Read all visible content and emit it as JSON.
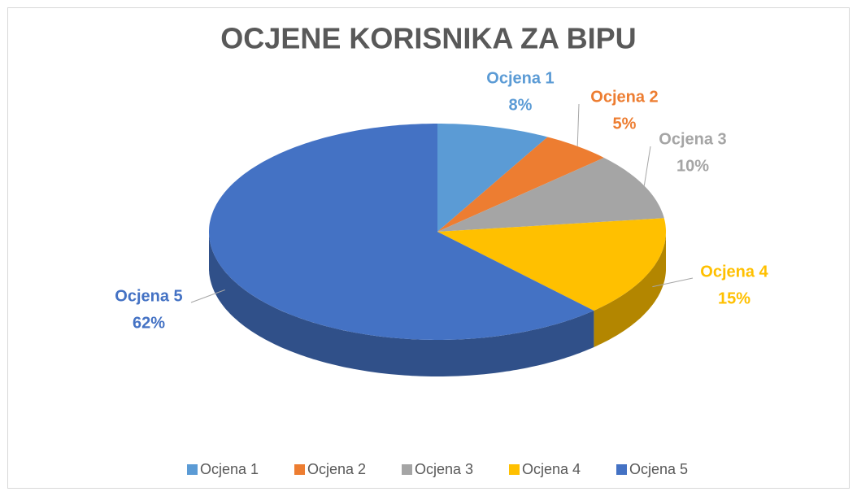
{
  "chart_data": {
    "type": "pie",
    "title": "OCJENE KORISNIKA ZA BIPU",
    "categories": [
      "Ocjena 1",
      "Ocjena 2",
      "Ocjena 3",
      "Ocjena 4",
      "Ocjena 5"
    ],
    "values": [
      8,
      5,
      10,
      15,
      62
    ],
    "value_labels": [
      "8%",
      "5%",
      "10%",
      "15%",
      "62%"
    ],
    "colors": [
      "#5b9bd5",
      "#ed7d31",
      "#a5a5a5",
      "#ffc000",
      "#4472c4"
    ],
    "legend": "bottom"
  }
}
